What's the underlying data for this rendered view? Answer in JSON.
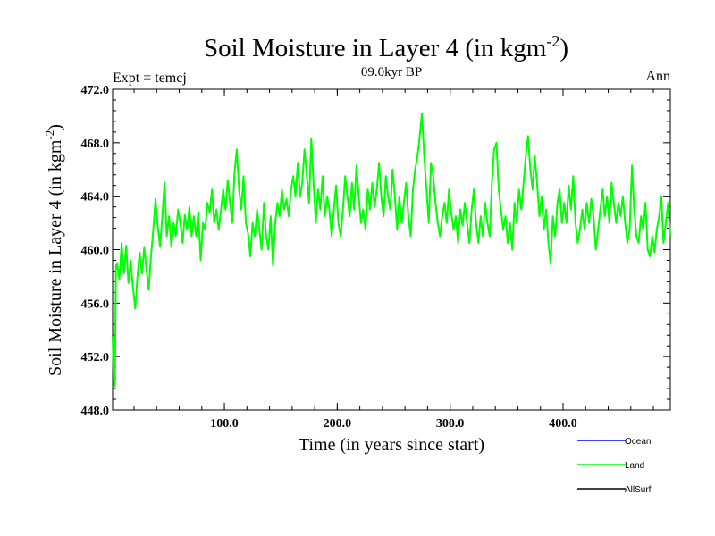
{
  "chart_data": {
    "type": "line",
    "title": "Soil Moisture in Layer 4 (in kgm",
    "title_sup": "-2",
    "title_close": ")",
    "subtitle_left": "Expt = temcj",
    "subtitle_center": "09.0kyr BP",
    "subtitle_right": "Ann",
    "xlabel": "Time (in years since start)",
    "ylabel": "Soil Moisture in Layer 4 (in kgm",
    "ylabel_sup": "-2",
    "ylabel_close": ")",
    "xlim": [
      1,
      495
    ],
    "ylim": [
      448,
      472
    ],
    "x_ticks": [
      100,
      200,
      300,
      400
    ],
    "x_tick_labels": [
      "100.0",
      "200.0",
      "300.0",
      "400.0"
    ],
    "y_ticks": [
      448,
      452,
      456,
      460,
      464,
      468,
      472
    ],
    "y_tick_labels": [
      "448.0",
      "452.0",
      "456.0",
      "460.0",
      "464.0",
      "468.0",
      "472.0"
    ],
    "legend": [
      {
        "name": "Ocean",
        "color": "#0000ff"
      },
      {
        "name": "Land",
        "color": "#00ff00"
      },
      {
        "name": "AllSurf",
        "color": "#000000"
      }
    ],
    "series": [
      {
        "name": "Land",
        "color": "#00ff00",
        "points": [
          [
            1,
            453.5
          ],
          [
            2,
            450.0
          ],
          [
            3,
            449.8
          ],
          [
            4,
            458.8
          ],
          [
            5,
            459.0
          ],
          [
            7,
            457.8
          ],
          [
            9,
            460.5
          ],
          [
            11,
            458.2
          ],
          [
            13,
            460.3
          ],
          [
            15,
            457.5
          ],
          [
            17,
            459.2
          ],
          [
            19,
            457.2
          ],
          [
            21,
            455.6
          ],
          [
            23,
            458.0
          ],
          [
            25,
            459.8
          ],
          [
            27,
            458.2
          ],
          [
            29,
            460.2
          ],
          [
            31,
            458.5
          ],
          [
            33,
            457.0
          ],
          [
            35,
            459.5
          ],
          [
            37,
            461.5
          ],
          [
            39,
            463.8
          ],
          [
            41,
            461.8
          ],
          [
            43,
            460.2
          ],
          [
            45,
            462.5
          ],
          [
            47,
            465.0
          ],
          [
            49,
            461.0
          ],
          [
            51,
            462.5
          ],
          [
            53,
            460.2
          ],
          [
            55,
            462.0
          ],
          [
            57,
            461.0
          ],
          [
            59,
            463.0
          ],
          [
            61,
            462.0
          ],
          [
            63,
            460.5
          ],
          [
            65,
            462.6
          ],
          [
            67,
            461.5
          ],
          [
            69,
            463.2
          ],
          [
            71,
            461.0
          ],
          [
            73,
            462.5
          ],
          [
            75,
            461.0
          ],
          [
            77,
            462.8
          ],
          [
            79,
            459.2
          ],
          [
            81,
            462.0
          ],
          [
            83,
            461.5
          ],
          [
            85,
            463.5
          ],
          [
            87,
            462.8
          ],
          [
            89,
            464.5
          ],
          [
            91,
            462.0
          ],
          [
            93,
            463.0
          ],
          [
            95,
            461.5
          ],
          [
            97,
            463.0
          ],
          [
            99,
            464.5
          ],
          [
            101,
            463.0
          ],
          [
            103,
            465.2
          ],
          [
            105,
            463.5
          ],
          [
            107,
            462.0
          ],
          [
            109,
            465.8
          ],
          [
            111,
            467.5
          ],
          [
            113,
            464.5
          ],
          [
            115,
            463.0
          ],
          [
            117,
            465.5
          ],
          [
            119,
            462.0
          ],
          [
            121,
            461.2
          ],
          [
            123,
            459.5
          ],
          [
            125,
            462.0
          ],
          [
            127,
            461.0
          ],
          [
            129,
            463.0
          ],
          [
            131,
            461.5
          ],
          [
            133,
            460.0
          ],
          [
            135,
            463.5
          ],
          [
            137,
            461.0
          ],
          [
            139,
            460.0
          ],
          [
            141,
            462.5
          ],
          [
            143,
            458.8
          ],
          [
            145,
            462.0
          ],
          [
            147,
            463.5
          ],
          [
            149,
            462.5
          ],
          [
            151,
            464.5
          ],
          [
            153,
            463.0
          ],
          [
            155,
            463.8
          ],
          [
            157,
            462.5
          ],
          [
            159,
            464.5
          ],
          [
            161,
            465.5
          ],
          [
            163,
            464.0
          ],
          [
            165,
            466.5
          ],
          [
            167,
            464.0
          ],
          [
            169,
            465.0
          ],
          [
            171,
            467.5
          ],
          [
            173,
            465.5
          ],
          [
            175,
            463.5
          ],
          [
            177,
            468.3
          ],
          [
            179,
            465.0
          ],
          [
            181,
            462.0
          ],
          [
            183,
            464.5
          ],
          [
            185,
            463.0
          ],
          [
            187,
            465.5
          ],
          [
            189,
            462.5
          ],
          [
            191,
            464.0
          ],
          [
            193,
            463.0
          ],
          [
            195,
            461.0
          ],
          [
            197,
            463.0
          ],
          [
            199,
            464.8
          ],
          [
            201,
            462.0
          ],
          [
            203,
            461.0
          ],
          [
            205,
            463.0
          ],
          [
            207,
            465.5
          ],
          [
            209,
            464.0
          ],
          [
            211,
            462.5
          ],
          [
            213,
            465.0
          ],
          [
            215,
            463.0
          ],
          [
            217,
            466.3
          ],
          [
            219,
            464.0
          ],
          [
            221,
            462.0
          ],
          [
            223,
            463.0
          ],
          [
            225,
            461.5
          ],
          [
            227,
            464.5
          ],
          [
            229,
            463.0
          ],
          [
            231,
            465.0
          ],
          [
            233,
            463.2
          ],
          [
            235,
            464.5
          ],
          [
            237,
            466.5
          ],
          [
            239,
            464.0
          ],
          [
            241,
            462.5
          ],
          [
            243,
            465.5
          ],
          [
            245,
            464.0
          ],
          [
            247,
            463.0
          ],
          [
            249,
            466.0
          ],
          [
            251,
            464.0
          ],
          [
            253,
            461.5
          ],
          [
            255,
            464.0
          ],
          [
            257,
            462.0
          ],
          [
            259,
            463.5
          ],
          [
            261,
            465.0
          ],
          [
            263,
            462.5
          ],
          [
            265,
            461.0
          ],
          [
            267,
            464.5
          ],
          [
            269,
            466.0
          ],
          [
            271,
            467.0
          ],
          [
            273,
            468.5
          ],
          [
            275,
            470.2
          ],
          [
            277,
            467.0
          ],
          [
            279,
            464.5
          ],
          [
            281,
            462.0
          ],
          [
            283,
            466.5
          ],
          [
            285,
            465.5
          ],
          [
            287,
            463.5
          ],
          [
            289,
            462.0
          ],
          [
            291,
            461.0
          ],
          [
            293,
            462.5
          ],
          [
            295,
            463.5
          ],
          [
            297,
            462.0
          ],
          [
            299,
            464.5
          ],
          [
            301,
            462.8
          ],
          [
            303,
            461.5
          ],
          [
            305,
            462.5
          ],
          [
            307,
            460.5
          ],
          [
            309,
            463.0
          ],
          [
            311,
            461.8
          ],
          [
            313,
            463.5
          ],
          [
            315,
            462.0
          ],
          [
            317,
            460.5
          ],
          [
            319,
            463.0
          ],
          [
            321,
            464.5
          ],
          [
            323,
            462.0
          ],
          [
            325,
            460.5
          ],
          [
            327,
            462.5
          ],
          [
            329,
            461.0
          ],
          [
            331,
            463.5
          ],
          [
            333,
            462.0
          ],
          [
            335,
            461.0
          ],
          [
            337,
            465.0
          ],
          [
            339,
            467.5
          ],
          [
            341,
            468.0
          ],
          [
            343,
            464.5
          ],
          [
            345,
            463.0
          ],
          [
            347,
            461.5
          ],
          [
            349,
            462.5
          ],
          [
            351,
            460.5
          ],
          [
            353,
            462.0
          ],
          [
            355,
            460.0
          ],
          [
            357,
            463.5
          ],
          [
            359,
            462.0
          ],
          [
            361,
            464.5
          ],
          [
            363,
            463.0
          ],
          [
            365,
            465.0
          ],
          [
            367,
            467.0
          ],
          [
            369,
            468.5
          ],
          [
            371,
            466.0
          ],
          [
            373,
            464.5
          ],
          [
            375,
            467.0
          ],
          [
            377,
            465.0
          ],
          [
            379,
            462.5
          ],
          [
            381,
            464.0
          ],
          [
            383,
            461.5
          ],
          [
            385,
            463.0
          ],
          [
            387,
            460.5
          ],
          [
            389,
            459.0
          ],
          [
            391,
            462.5
          ],
          [
            393,
            461.0
          ],
          [
            395,
            463.5
          ],
          [
            397,
            464.5
          ],
          [
            399,
            462.0
          ],
          [
            401,
            463.5
          ],
          [
            403,
            462.0
          ],
          [
            405,
            464.8
          ],
          [
            407,
            463.0
          ],
          [
            409,
            465.5
          ],
          [
            411,
            462.0
          ],
          [
            413,
            460.5
          ],
          [
            415,
            461.5
          ],
          [
            417,
            463.0
          ],
          [
            419,
            461.5
          ],
          [
            421,
            463.5
          ],
          [
            423,
            462.0
          ],
          [
            425,
            463.8
          ],
          [
            427,
            462.5
          ],
          [
            429,
            460.0
          ],
          [
            431,
            461.5
          ],
          [
            433,
            463.0
          ],
          [
            435,
            464.5
          ],
          [
            437,
            462.5
          ],
          [
            439,
            464.0
          ],
          [
            441,
            462.0
          ],
          [
            443,
            465.0
          ],
          [
            445,
            463.5
          ],
          [
            447,
            462.0
          ],
          [
            449,
            463.5
          ],
          [
            451,
            462.5
          ],
          [
            453,
            464.0
          ],
          [
            455,
            462.0
          ],
          [
            457,
            460.5
          ],
          [
            459,
            461.5
          ],
          [
            461,
            466.3
          ],
          [
            463,
            463.0
          ],
          [
            465,
            461.0
          ],
          [
            467,
            460.5
          ],
          [
            469,
            462.5
          ],
          [
            471,
            461.5
          ],
          [
            473,
            463.5
          ],
          [
            475,
            460.0
          ],
          [
            477,
            459.5
          ],
          [
            479,
            461.0
          ],
          [
            481,
            459.8
          ],
          [
            483,
            461.5
          ],
          [
            485,
            462.5
          ],
          [
            487,
            464.0
          ],
          [
            489,
            460.5
          ],
          [
            491,
            462.0
          ],
          [
            493,
            463.5
          ],
          [
            495,
            461.0
          ]
        ]
      }
    ]
  }
}
